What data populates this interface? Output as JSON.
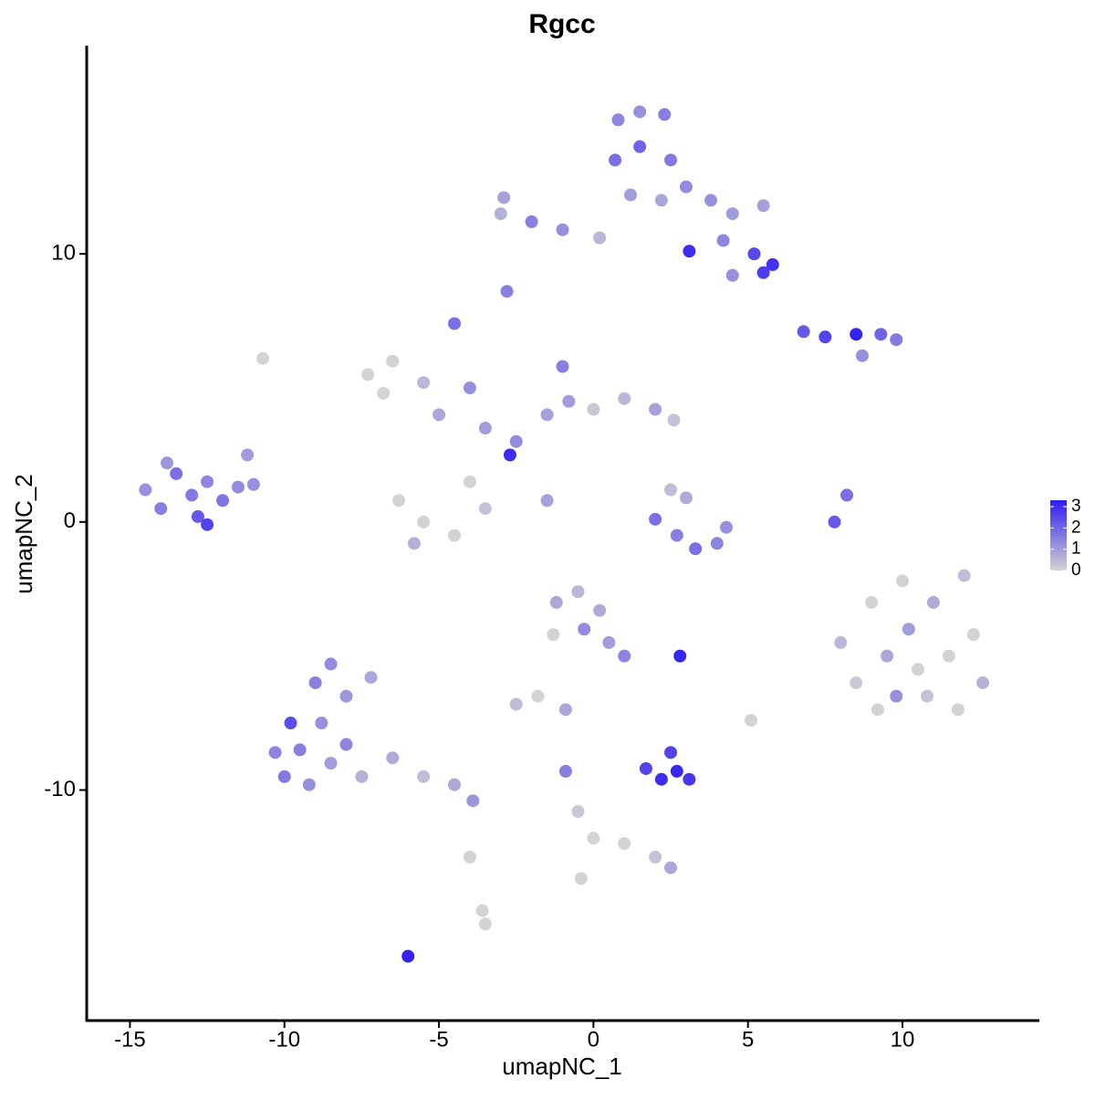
{
  "chart_data": {
    "type": "scatter",
    "title": "Rgcc",
    "x_label": "umapNC_1",
    "y_label": "umapNC_2",
    "x": [
      -14.5,
      -14,
      -13.5,
      -13,
      -12.8,
      -12.5,
      -12,
      -11.5,
      -11.2,
      -13.8,
      -12.5,
      -11,
      -10.3,
      -10,
      -9.8,
      -9.5,
      -9.2,
      -9,
      -8.8,
      -8.5,
      -8.5,
      -8,
      -8,
      -7.5,
      -7.2,
      -6.5,
      -5.5,
      -4.5,
      -3.9,
      -4,
      -3.6,
      -3.5,
      0.8,
      1.5,
      2.3,
      0.7,
      1.5,
      2.5,
      3,
      1.2,
      2.2,
      3.8,
      4.5,
      5.5,
      4.2,
      5.2,
      5.8,
      5.5,
      4.5,
      -3,
      -2,
      -1,
      0.2,
      -2.9,
      3.1,
      -7.3,
      -6.5,
      -6.8,
      -5.5,
      -5,
      -4.5,
      -4,
      -3.5,
      -2.5,
      -2.7,
      -1.5,
      -1,
      -0.8,
      0,
      1,
      2,
      2.6,
      -6.3,
      -5.5,
      -4.5,
      -3.5,
      -5.8,
      -4,
      -1.5,
      6.8,
      7.5,
      8.5,
      9.3,
      9.8,
      8.7,
      2,
      2.7,
      3.3,
      4,
      3,
      4.3,
      2.5,
      8,
      8.5,
      9,
      9.5,
      10,
      10.2,
      10.8,
      11,
      11.5,
      12,
      12.3,
      12.6,
      9.2,
      11.8,
      10.5,
      9.8,
      -1.2,
      -0.5,
      -0.3,
      0.5,
      1,
      -1.3,
      0.2,
      -1.8,
      -2.5,
      -0.9,
      1.7,
      2.2,
      2.7,
      3.1,
      2.5,
      2.8,
      -6,
      7.8,
      8.2,
      -0.9,
      -0.5,
      0,
      1,
      2,
      2.5,
      -0.4,
      -2.8,
      5.1,
      -10.7
    ],
    "y": [
      1.2,
      0.5,
      1.8,
      1,
      0.2,
      1.5,
      0.8,
      1.3,
      2.5,
      2.2,
      -0.1,
      1.4,
      -8.6,
      -9.5,
      -7.5,
      -8.5,
      -9.8,
      -6,
      -7.5,
      -5.3,
      -9,
      -6.5,
      -8.3,
      -9.5,
      -5.8,
      -8.8,
      -9.5,
      -9.8,
      -10.4,
      -12.5,
      -14.5,
      -15,
      15,
      15.3,
      15.2,
      13.5,
      14,
      13.5,
      12.5,
      12.2,
      12,
      12,
      11.5,
      11.8,
      10.5,
      10,
      9.6,
      9.3,
      9.2,
      11.5,
      11.2,
      10.9,
      10.6,
      12.1,
      10.1,
      5.5,
      6,
      4.8,
      5.2,
      4,
      7.4,
      5,
      3.5,
      3,
      2.5,
      4,
      5.8,
      4.5,
      4.2,
      4.6,
      4.2,
      3.8,
      0.8,
      0,
      -0.5,
      0.5,
      -0.8,
      1.5,
      0.8,
      7.1,
      6.9,
      7,
      7,
      6.8,
      6.2,
      0.1,
      -0.5,
      -1,
      -0.8,
      0.9,
      -0.2,
      1.2,
      -4.5,
      -6,
      -3,
      -5,
      -2.2,
      -4,
      -6.5,
      -3,
      -5,
      -2,
      -4.2,
      -6,
      -7,
      -7,
      -5.5,
      -6.5,
      -3,
      -2.6,
      -4,
      -4.5,
      -5,
      -4.2,
      -3.3,
      -6.5,
      -6.8,
      -7,
      -9.2,
      -9.6,
      -9.3,
      -9.6,
      -8.6,
      -5,
      -16.2,
      0,
      1,
      -9.3,
      -10.8,
      -11.8,
      -12,
      -12.5,
      -12.9,
      -13.3,
      8.6,
      -7.4,
      6.1
    ],
    "values": [
      1.2,
      1.5,
      1.8,
      1.6,
      2.2,
      1.4,
      1.7,
      1.3,
      1.0,
      1.1,
      2.6,
      1.2,
      1.4,
      1.6,
      2.4,
      1.5,
      1.2,
      1.5,
      1.2,
      1.3,
      1.0,
      1.1,
      1.4,
      0.6,
      0.8,
      0.7,
      0.4,
      0.8,
      1.1,
      0,
      0,
      0,
      1.4,
      1.2,
      1.5,
      1.8,
      2.0,
      1.6,
      1.3,
      1.0,
      0.8,
      1.2,
      1.0,
      0.9,
      1.4,
      2.5,
      2.9,
      2.7,
      1.2,
      0.6,
      1.5,
      1.2,
      0.5,
      0.9,
      3,
      0,
      0,
      0,
      0.5,
      0.8,
      1.8,
      1.2,
      1.0,
      1.3,
      3,
      0.9,
      1.5,
      1.0,
      0.2,
      0.5,
      0.9,
      0.3,
      0,
      0,
      0,
      0.3,
      0.6,
      0,
      0.9,
      2.2,
      2.6,
      3.2,
      2.0,
      1.6,
      1.2,
      1.8,
      1.5,
      1.8,
      1.4,
      0.7,
      1.2,
      0.4,
      0.5,
      0.2,
      0,
      0.8,
      0,
      1.0,
      0.3,
      0.7,
      0,
      0.4,
      0,
      0.6,
      0,
      0,
      0,
      1.2,
      0.8,
      0.5,
      1.3,
      1.0,
      1.4,
      0,
      0.7,
      0,
      0.4,
      0.8,
      2.6,
      3.0,
      3.1,
      2.8,
      2.6,
      3.1,
      3.2,
      2.2,
      1.8,
      1.5,
      0.2,
      0,
      0,
      0.3,
      0.8,
      0,
      1.5,
      0,
      0
    ],
    "xlim": [
      -16.4,
      14.4
    ],
    "ylim": [
      -18.6,
      17.7
    ],
    "xticks": [
      -15,
      -10,
      -5,
      0,
      5,
      10
    ],
    "yticks": [
      -10,
      0,
      10
    ],
    "color_low": "#D3D3D3",
    "color_high": "#2F1CF2",
    "color_lim": [
      0,
      3.3
    ],
    "color_ticks": [
      0,
      1,
      2,
      3
    ]
  }
}
